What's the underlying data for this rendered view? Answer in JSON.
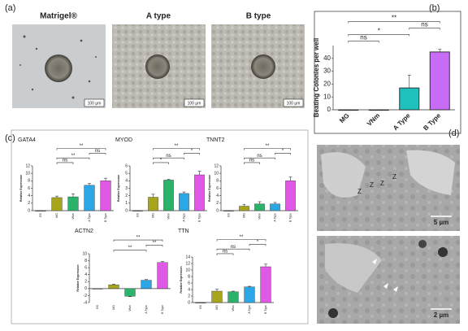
{
  "figure": {
    "panel_labels": [
      "(a)",
      "(b)",
      "(c)",
      "(d)"
    ],
    "micrographs": [
      {
        "label": "Matrigel®",
        "scale": "100 µm"
      },
      {
        "label": "A type",
        "scale": "100 µm"
      },
      {
        "label": "B type",
        "scale": "100 µm"
      }
    ],
    "em_images": [
      {
        "marks": [
          "Z",
          "Z",
          "Z",
          "Z"
        ],
        "scale": "5 µm"
      },
      {
        "scale": "2 µm"
      }
    ]
  },
  "chart_data": [
    {
      "type": "bar",
      "ylabel": "Beating Colonies per well",
      "categories": [
        "MG",
        "VNm",
        "A Type",
        "B Type"
      ],
      "values": [
        0,
        0,
        17,
        45
      ],
      "errors": [
        0,
        0,
        10,
        2
      ],
      "colors": [
        "#ffffff",
        "#ffffff",
        "#1fc1bd",
        "#c86cf5"
      ],
      "ylim": [
        0,
        50
      ],
      "yticks": [
        0,
        10,
        20,
        30,
        40
      ],
      "annotations": [
        {
          "text": "**",
          "pair": [
            "MG",
            "B Type"
          ]
        },
        {
          "text": "ns",
          "pair": [
            "A Type",
            "B Type"
          ]
        },
        {
          "text": "*",
          "pair": [
            "MG",
            "A Type"
          ]
        },
        {
          "text": "ns",
          "pair": [
            "MG",
            "VNm"
          ]
        }
      ]
    },
    {
      "type": "bar",
      "title": "GATA4",
      "ylabel": "Relative Expression",
      "categories": [
        "ES",
        "MG",
        "VNm",
        "A Type",
        "B Type"
      ],
      "values": [
        0,
        3.5,
        3.7,
        6.8,
        8
      ],
      "errors": [
        0,
        0.4,
        0.8,
        0.5,
        0.7
      ],
      "colors": [
        "#222222",
        "#a7a51c",
        "#2bb36b",
        "#2ba7e6",
        "#df58e6"
      ],
      "ylim": [
        0,
        12
      ],
      "yticks": [
        0,
        2,
        4,
        6,
        8,
        10,
        12
      ],
      "annotations": [
        {
          "text": "**",
          "pair": [
            "MG",
            "B Type"
          ]
        },
        {
          "text": "ns",
          "pair": [
            "A Type",
            "B Type"
          ]
        },
        {
          "text": "**",
          "pair": [
            "MG",
            "A Type"
          ]
        },
        {
          "text": "ns",
          "pair": [
            "MG",
            "VNm"
          ]
        }
      ]
    },
    {
      "type": "bar",
      "title": "MYOD",
      "ylabel": "Relative Expression",
      "categories": [
        "ES",
        "MG",
        "VNm",
        "A Type",
        "B Type"
      ],
      "values": [
        0,
        1.8,
        4.1,
        2.3,
        4.8
      ],
      "errors": [
        0,
        0.4,
        0.1,
        0.2,
        0.5
      ],
      "colors": [
        "#222222",
        "#a7a51c",
        "#2bb36b",
        "#2ba7e6",
        "#df58e6"
      ],
      "ylim": [
        0,
        6
      ],
      "yticks": [
        0,
        1,
        2,
        3,
        4,
        5,
        6
      ],
      "annotations": [
        {
          "text": "**",
          "pair": [
            "MG",
            "B Type"
          ]
        },
        {
          "text": "*",
          "pair": [
            "A Type",
            "B Type"
          ]
        },
        {
          "text": "ns",
          "pair": [
            "MG",
            "A Type"
          ]
        },
        {
          "text": "*",
          "pair": [
            "MG",
            "VNm"
          ]
        }
      ]
    },
    {
      "type": "bar",
      "title": "TNNT2",
      "ylabel": "Relative Expression",
      "categories": [
        "ES",
        "MG",
        "VNm",
        "A Type",
        "B Type"
      ],
      "values": [
        0,
        1.2,
        1.8,
        1.8,
        8
      ],
      "errors": [
        0,
        0.5,
        0.6,
        0.4,
        1
      ],
      "colors": [
        "#222222",
        "#a7a51c",
        "#2bb36b",
        "#2ba7e6",
        "#df58e6"
      ],
      "ylim": [
        0,
        12
      ],
      "yticks": [
        0,
        2,
        4,
        6,
        8,
        10,
        12
      ],
      "annotations": [
        {
          "text": "**",
          "pair": [
            "MG",
            "B Type"
          ]
        },
        {
          "text": "*",
          "pair": [
            "A Type",
            "B Type"
          ]
        },
        {
          "text": "ns",
          "pair": [
            "MG",
            "A Type"
          ]
        },
        {
          "text": "ns",
          "pair": [
            "MG",
            "VNm"
          ]
        }
      ]
    },
    {
      "type": "bar",
      "title": "ACTN2",
      "ylabel": "Relative Expression",
      "categories": [
        "ES",
        "MG",
        "VNm",
        "A Type",
        "B Type"
      ],
      "values": [
        0,
        1.1,
        -2.2,
        2.4,
        7.5
      ],
      "errors": [
        0,
        0.2,
        0.1,
        0.2,
        0.3
      ],
      "colors": [
        "#222222",
        "#a7a51c",
        "#2bb36b",
        "#2ba7e6",
        "#df58e6"
      ],
      "ylim": [
        -4,
        10
      ],
      "yticks": [
        -4,
        -2,
        0,
        2,
        4,
        6,
        8,
        10
      ],
      "annotations": [
        {
          "text": "**",
          "pair": [
            "MG",
            "B Type"
          ]
        },
        {
          "text": "**",
          "pair": [
            "A Type",
            "B Type"
          ]
        },
        {
          "text": "**",
          "pair": [
            "MG",
            "A Type"
          ]
        }
      ]
    },
    {
      "type": "bar",
      "title": "TTN",
      "ylabel": "Relative Expression",
      "categories": [
        "ES",
        "MG",
        "VNm",
        "A Type",
        "B Type"
      ],
      "values": [
        0,
        3.5,
        3.3,
        4.8,
        11
      ],
      "errors": [
        0,
        0.6,
        0.2,
        0.2,
        0.8
      ],
      "colors": [
        "#222222",
        "#a7a51c",
        "#2bb36b",
        "#2ba7e6",
        "#df58e6"
      ],
      "ylim": [
        0,
        14
      ],
      "yticks": [
        0,
        2,
        4,
        6,
        8,
        10,
        12,
        14
      ],
      "annotations": [
        {
          "text": "**",
          "pair": [
            "MG",
            "B Type"
          ]
        },
        {
          "text": "*",
          "pair": [
            "A Type",
            "B Type"
          ]
        },
        {
          "text": "ns",
          "pair": [
            "MG",
            "A Type"
          ]
        },
        {
          "text": "ns",
          "pair": [
            "MG",
            "VNm"
          ]
        }
      ]
    }
  ]
}
